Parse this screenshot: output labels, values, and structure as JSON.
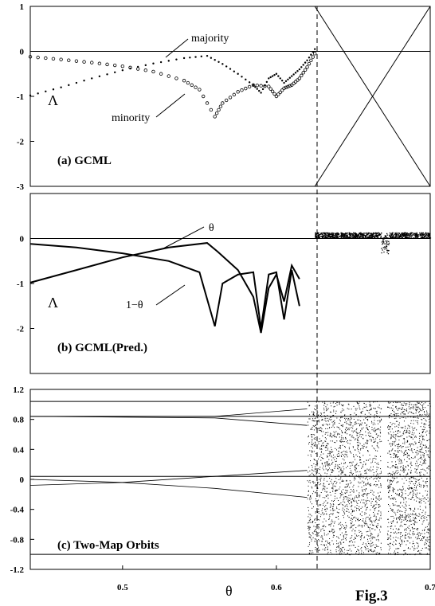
{
  "figure_label": "Fig.3",
  "x_axis_symbol": "θ",
  "colors": {
    "ink": "#000000",
    "background": "#ffffff"
  },
  "chart_data": [
    {
      "type": "scatter",
      "panel_label": "(a)  GCML",
      "ylabel": "Λ",
      "xlim": [
        0.44,
        0.7
      ],
      "ylim": [
        -3,
        1
      ],
      "yticks": [
        "1",
        "0",
        "-1",
        "-2",
        "-3"
      ],
      "annotations": [
        "majority",
        "minority"
      ],
      "series": [
        {
          "name": "majority",
          "marker": "dot",
          "x": [
            0.44,
            0.46,
            0.48,
            0.5,
            0.52,
            0.54,
            0.555,
            0.565,
            0.575,
            0.585,
            0.59,
            0.595,
            0.6,
            0.605,
            0.61,
            0.615,
            0.62,
            0.625
          ],
          "y": [
            -0.98,
            -0.8,
            -0.6,
            -0.42,
            -0.27,
            -0.15,
            -0.1,
            -0.28,
            -0.5,
            -0.75,
            -0.92,
            -0.6,
            -0.5,
            -0.7,
            -0.55,
            -0.4,
            -0.2,
            0.05
          ]
        },
        {
          "name": "minority",
          "marker": "circle",
          "x": [
            0.44,
            0.46,
            0.48,
            0.5,
            0.52,
            0.54,
            0.55,
            0.56,
            0.565,
            0.575,
            0.585,
            0.595,
            0.6,
            0.605,
            0.61,
            0.615,
            0.62,
            0.625
          ],
          "y": [
            -0.12,
            -0.18,
            -0.25,
            -0.33,
            -0.45,
            -0.65,
            -0.85,
            -1.45,
            -1.15,
            -0.9,
            -0.75,
            -0.78,
            -1.0,
            -0.82,
            -0.75,
            -0.6,
            -0.35,
            -0.05
          ]
        }
      ]
    },
    {
      "type": "line",
      "panel_label": "(b)  GCML(Pred.)",
      "ylabel": "Λ",
      "xlim": [
        0.44,
        0.7
      ],
      "ylim": [
        -3,
        1
      ],
      "yticks": [
        "0",
        "-1",
        "-2"
      ],
      "annotations": [
        "θ",
        "1−θ"
      ],
      "series": [
        {
          "name": "θ",
          "x": [
            0.44,
            0.47,
            0.5,
            0.53,
            0.555,
            0.562,
            0.575,
            0.585,
            0.59,
            0.595,
            0.6,
            0.605,
            0.61,
            0.615
          ],
          "y": [
            -0.98,
            -0.7,
            -0.42,
            -0.2,
            -0.1,
            -0.3,
            -0.7,
            -1.3,
            -2.1,
            -1.1,
            -0.8,
            -1.4,
            -0.6,
            -0.9
          ]
        },
        {
          "name": "1−θ",
          "x": [
            0.44,
            0.47,
            0.5,
            0.53,
            0.55,
            0.56,
            0.565,
            0.575,
            0.585,
            0.59,
            0.595,
            0.6,
            0.605,
            0.61,
            0.615
          ],
          "y": [
            -0.12,
            -0.2,
            -0.33,
            -0.5,
            -0.75,
            -1.95,
            -1.0,
            -0.8,
            -0.75,
            -2.0,
            -0.8,
            -0.75,
            -1.8,
            -0.7,
            -1.5
          ]
        },
        {
          "name": "chaotic",
          "x": [
            0.625,
            0.64,
            0.66,
            0.67,
            0.68,
            0.7
          ],
          "y": [
            0.05,
            0.1,
            0.12,
            -0.3,
            0.1,
            0.15
          ]
        }
      ]
    },
    {
      "type": "scatter",
      "panel_label": "(c)  Two-Map Orbits",
      "xlim": [
        0.44,
        0.7
      ],
      "ylim": [
        -1.2,
        1.2
      ],
      "yticks": [
        "1.2",
        "0.8",
        "0.4",
        "0",
        "-0.4",
        "-0.8",
        "-1.2"
      ],
      "xticks": [
        "0.5",
        "0.6",
        "0.7"
      ],
      "xticks_values": [
        0.5,
        0.6,
        0.7
      ],
      "hlines": [
        1.04,
        -1.0,
        0.04,
        0.84
      ],
      "bands": [
        {
          "x": [
            0.44,
            0.56,
            0.62
          ],
          "y": [
            0.84,
            0.84,
            0.94
          ]
        },
        {
          "x": [
            0.44,
            0.56,
            0.62
          ],
          "y": [
            0.84,
            0.82,
            0.72
          ]
        },
        {
          "x": [
            0.44,
            0.5,
            0.56,
            0.62
          ],
          "y": [
            -0.08,
            -0.04,
            0.04,
            0.12
          ]
        },
        {
          "x": [
            0.44,
            0.5,
            0.56,
            0.62
          ],
          "y": [
            0.0,
            -0.04,
            -0.12,
            -0.24
          ]
        }
      ],
      "chaos_x_range": [
        0.62,
        0.7
      ],
      "chaos_y_range": [
        -1.0,
        1.04
      ]
    }
  ]
}
